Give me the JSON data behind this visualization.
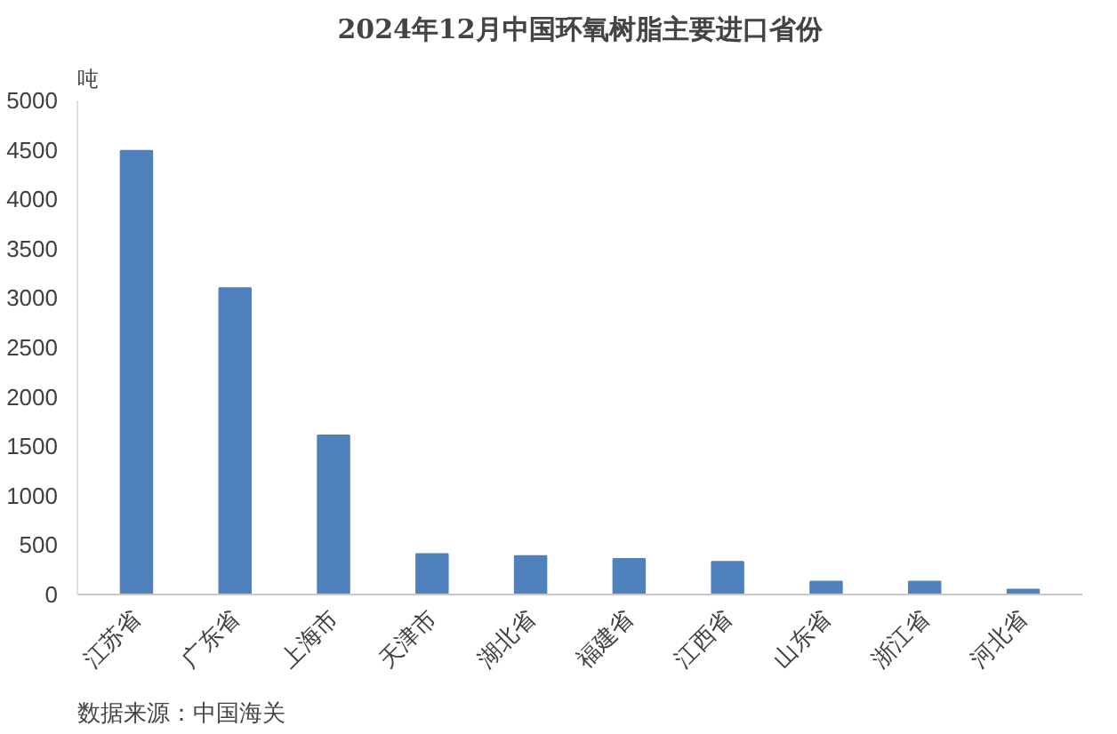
{
  "chart_data": {
    "type": "bar",
    "title": "2024年12月中国环氧树脂主要进口省份",
    "ylabel": "吨",
    "categories": [
      "江苏省",
      "广东省",
      "上海市",
      "天津市",
      "湖北省",
      "福建省",
      "江西省",
      "山东省",
      "浙江省",
      "河北省"
    ],
    "values": [
      4490,
      3100,
      1610,
      410,
      390,
      360,
      330,
      130,
      130,
      50
    ],
    "color": "#4f81bd",
    "ylim": [
      0,
      5000
    ],
    "yticks": [
      0,
      500,
      1000,
      1500,
      2000,
      2500,
      3000,
      3500,
      4000,
      4500,
      5000
    ],
    "grid": false,
    "annotations": [
      "数据来源：中国海关"
    ]
  }
}
